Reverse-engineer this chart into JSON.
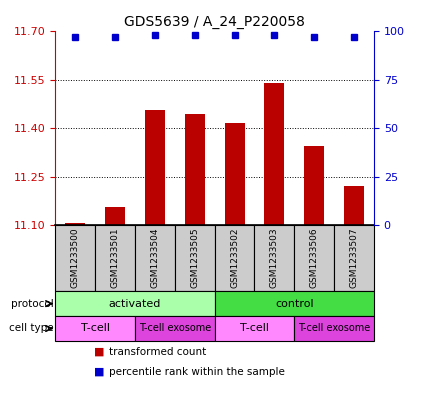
{
  "title": "GDS5639 / A_24_P220058",
  "samples": [
    "GSM1233500",
    "GSM1233501",
    "GSM1233504",
    "GSM1233505",
    "GSM1233502",
    "GSM1233503",
    "GSM1233506",
    "GSM1233507"
  ],
  "bar_values": [
    11.105,
    11.155,
    11.455,
    11.445,
    11.415,
    11.54,
    11.345,
    11.22
  ],
  "percentile_values": [
    97,
    97,
    98,
    98,
    98,
    98,
    97,
    97
  ],
  "ylim_left": [
    11.1,
    11.7
  ],
  "ylim_right": [
    0,
    100
  ],
  "yticks_left": [
    11.1,
    11.25,
    11.4,
    11.55,
    11.7
  ],
  "yticks_right": [
    0,
    25,
    50,
    75,
    100
  ],
  "bar_color": "#bb0000",
  "dot_color": "#0000cc",
  "background_color": "#ffffff",
  "protocol_groups": [
    {
      "label": "activated",
      "start": 0,
      "end": 4,
      "color": "#aaffaa"
    },
    {
      "label": "control",
      "start": 4,
      "end": 8,
      "color": "#44dd44"
    }
  ],
  "cell_type_groups": [
    {
      "label": "T-cell",
      "start": 0,
      "end": 2,
      "color": "#ff88ff"
    },
    {
      "label": "T-cell exosome",
      "start": 2,
      "end": 4,
      "color": "#dd44dd"
    },
    {
      "label": "T-cell",
      "start": 4,
      "end": 6,
      "color": "#ff88ff"
    },
    {
      "label": "T-cell exosome",
      "start": 6,
      "end": 8,
      "color": "#dd44dd"
    }
  ],
  "grid_color": "#000000",
  "tick_label_color_left": "#cc0000",
  "tick_label_color_right": "#0000cc",
  "sample_box_color": "#cccccc",
  "legend_red_label": "transformed count",
  "legend_blue_label": "percentile rank within the sample"
}
